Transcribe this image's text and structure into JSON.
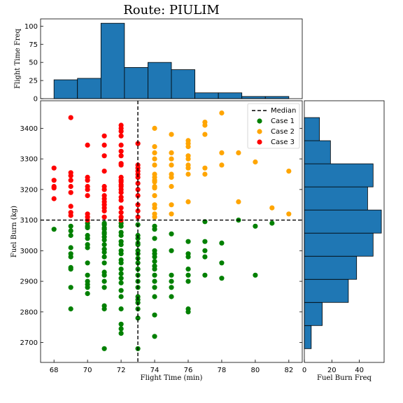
{
  "chart_data": {
    "type": "scatter",
    "title": "Route: PIULIM",
    "xlabel": "Flight Time (min)",
    "ylabel": "Fuel Burn (kg)",
    "xlim": [
      67.2,
      82.8
    ],
    "ylim": [
      2635,
      3490
    ],
    "xticks": [
      68,
      70,
      72,
      74,
      76,
      78,
      80,
      82
    ],
    "yticks": [
      2700,
      2800,
      2900,
      3000,
      3100,
      3200,
      3300,
      3400
    ],
    "median_x": 73,
    "median_y": 3100,
    "legend": {
      "placement": "top-right",
      "median_label": "Median",
      "colors": {
        "median": "#000000"
      }
    },
    "series": [
      {
        "name": "Case 1",
        "color": "#008000",
        "points": [
          [
            68,
            3070
          ],
          [
            69,
            3080
          ],
          [
            69,
            3065
          ],
          [
            69,
            3050
          ],
          [
            69,
            3010
          ],
          [
            69,
            2990
          ],
          [
            69,
            2980
          ],
          [
            69,
            2945
          ],
          [
            69,
            2940
          ],
          [
            69,
            2880
          ],
          [
            69,
            2810
          ],
          [
            70,
            3090
          ],
          [
            70,
            3080
          ],
          [
            70,
            3075
          ],
          [
            70,
            3050
          ],
          [
            70,
            3040
          ],
          [
            70,
            3020
          ],
          [
            70,
            3010
          ],
          [
            70,
            2960
          ],
          [
            70,
            2920
          ],
          [
            70,
            2900
          ],
          [
            70,
            2890
          ],
          [
            70,
            2880
          ],
          [
            70,
            2860
          ],
          [
            71,
            3090
          ],
          [
            71,
            3085
          ],
          [
            71,
            3075
          ],
          [
            71,
            3070
          ],
          [
            71,
            3060
          ],
          [
            71,
            3055
          ],
          [
            71,
            3045
          ],
          [
            71,
            3035
          ],
          [
            71,
            3020
          ],
          [
            71,
            3005
          ],
          [
            71,
            2995
          ],
          [
            71,
            2980
          ],
          [
            71,
            2960
          ],
          [
            71,
            2930
          ],
          [
            71,
            2920
          ],
          [
            71,
            2900
          ],
          [
            71,
            2880
          ],
          [
            71,
            2820
          ],
          [
            71,
            2810
          ],
          [
            71,
            2680
          ],
          [
            72,
            3090
          ],
          [
            72,
            3080
          ],
          [
            72,
            3060
          ],
          [
            72,
            3050
          ],
          [
            72,
            3030
          ],
          [
            72,
            3020
          ],
          [
            72,
            3000
          ],
          [
            72,
            2990
          ],
          [
            72,
            2970
          ],
          [
            72,
            2960
          ],
          [
            72,
            2940
          ],
          [
            72,
            2925
          ],
          [
            72,
            2910
          ],
          [
            72,
            2895
          ],
          [
            72,
            2870
          ],
          [
            72,
            2850
          ],
          [
            72,
            2810
          ],
          [
            72,
            2760
          ],
          [
            72,
            2745
          ],
          [
            72,
            2730
          ],
          [
            73,
            3085
          ],
          [
            73,
            3050
          ],
          [
            73,
            3040
          ],
          [
            73,
            3025
          ],
          [
            73,
            3020
          ],
          [
            73,
            3000
          ],
          [
            73,
            2990
          ],
          [
            73,
            2975
          ],
          [
            73,
            2960
          ],
          [
            73,
            2940
          ],
          [
            73,
            2920
          ],
          [
            73,
            2900
          ],
          [
            73,
            2880
          ],
          [
            73,
            2850
          ],
          [
            73,
            2840
          ],
          [
            73,
            2830
          ],
          [
            73,
            2810
          ],
          [
            73,
            2780
          ],
          [
            73,
            2680
          ],
          [
            74,
            3080
          ],
          [
            74,
            3070
          ],
          [
            74,
            3040
          ],
          [
            74,
            3000
          ],
          [
            74,
            2990
          ],
          [
            74,
            2980
          ],
          [
            74,
            2965
          ],
          [
            74,
            2950
          ],
          [
            74,
            2940
          ],
          [
            74,
            2920
          ],
          [
            74,
            2900
          ],
          [
            74,
            2880
          ],
          [
            74,
            2850
          ],
          [
            74,
            2790
          ],
          [
            74,
            2720
          ],
          [
            75,
            3055
          ],
          [
            75,
            3000
          ],
          [
            75,
            2920
          ],
          [
            75,
            2900
          ],
          [
            75,
            2880
          ],
          [
            75,
            2850
          ],
          [
            76,
            3030
          ],
          [
            76,
            2990
          ],
          [
            76,
            2980
          ],
          [
            76,
            2940
          ],
          [
            76,
            2920
          ],
          [
            76,
            2900
          ],
          [
            76,
            2810
          ],
          [
            76,
            2800
          ],
          [
            77,
            3095
          ],
          [
            77,
            3030
          ],
          [
            77,
            3000
          ],
          [
            77,
            2980
          ],
          [
            77,
            2920
          ],
          [
            78,
            3025
          ],
          [
            78,
            2960
          ],
          [
            78,
            2910
          ],
          [
            79,
            3100
          ],
          [
            80,
            3080
          ],
          [
            80,
            2920
          ],
          [
            81,
            3090
          ]
        ]
      },
      {
        "name": "Case 2",
        "color": "#ffa500",
        "points": [
          [
            74,
            3400
          ],
          [
            74,
            3340
          ],
          [
            74,
            3320
          ],
          [
            74,
            3300
          ],
          [
            74,
            3280
          ],
          [
            74,
            3250
          ],
          [
            74,
            3240
          ],
          [
            74,
            3230
          ],
          [
            74,
            3225
          ],
          [
            74,
            3210
          ],
          [
            74,
            3205
          ],
          [
            74,
            3180
          ],
          [
            74,
            3150
          ],
          [
            74,
            3140
          ],
          [
            74,
            3120
          ],
          [
            74,
            3110
          ],
          [
            75,
            3380
          ],
          [
            75,
            3320
          ],
          [
            75,
            3300
          ],
          [
            75,
            3280
          ],
          [
            75,
            3250
          ],
          [
            75,
            3240
          ],
          [
            75,
            3210
          ],
          [
            75,
            3150
          ],
          [
            75,
            3120
          ],
          [
            76,
            3360
          ],
          [
            76,
            3350
          ],
          [
            76,
            3340
          ],
          [
            76,
            3310
          ],
          [
            76,
            3300
          ],
          [
            76,
            3280
          ],
          [
            76,
            3270
          ],
          [
            76,
            3250
          ],
          [
            76,
            3160
          ],
          [
            77,
            3420
          ],
          [
            77,
            3410
          ],
          [
            77,
            3380
          ],
          [
            77,
            3270
          ],
          [
            77,
            3250
          ],
          [
            78,
            3450
          ],
          [
            78,
            3320
          ],
          [
            78,
            3280
          ],
          [
            79,
            3320
          ],
          [
            79,
            3160
          ],
          [
            80,
            3290
          ],
          [
            81,
            3140
          ],
          [
            82,
            3260
          ],
          [
            82,
            3120
          ]
        ]
      },
      {
        "name": "Case 3",
        "color": "#ff0000",
        "points": [
          [
            68,
            3270
          ],
          [
            68,
            3230
          ],
          [
            68,
            3210
          ],
          [
            68,
            3205
          ],
          [
            68,
            3170
          ],
          [
            69,
            3435
          ],
          [
            69,
            3255
          ],
          [
            69,
            3245
          ],
          [
            69,
            3230
          ],
          [
            69,
            3210
          ],
          [
            69,
            3190
          ],
          [
            69,
            3145
          ],
          [
            69,
            3125
          ],
          [
            69,
            3115
          ],
          [
            70,
            3345
          ],
          [
            70,
            3240
          ],
          [
            70,
            3230
          ],
          [
            70,
            3210
          ],
          [
            70,
            3200
          ],
          [
            70,
            3180
          ],
          [
            70,
            3120
          ],
          [
            70,
            3110
          ],
          [
            70,
            3100
          ],
          [
            71,
            3375
          ],
          [
            71,
            3345
          ],
          [
            71,
            3310
          ],
          [
            71,
            3260
          ],
          [
            71,
            3210
          ],
          [
            71,
            3200
          ],
          [
            71,
            3180
          ],
          [
            71,
            3170
          ],
          [
            71,
            3160
          ],
          [
            71,
            3150
          ],
          [
            71,
            3140
          ],
          [
            71,
            3130
          ],
          [
            71,
            3110
          ],
          [
            72,
            3410
          ],
          [
            72,
            3400
          ],
          [
            72,
            3390
          ],
          [
            72,
            3375
          ],
          [
            72,
            3345
          ],
          [
            72,
            3325
          ],
          [
            72,
            3310
          ],
          [
            72,
            3285
          ],
          [
            72,
            3280
          ],
          [
            72,
            3240
          ],
          [
            72,
            3230
          ],
          [
            72,
            3225
          ],
          [
            72,
            3215
          ],
          [
            72,
            3210
          ],
          [
            72,
            3200
          ],
          [
            72,
            3190
          ],
          [
            72,
            3175
          ],
          [
            72,
            3165
          ],
          [
            72,
            3140
          ],
          [
            72,
            3125
          ],
          [
            72,
            3110
          ],
          [
            72,
            3100
          ],
          [
            73,
            3350
          ],
          [
            73,
            3280
          ],
          [
            73,
            3270
          ],
          [
            73,
            3260
          ],
          [
            73,
            3250
          ],
          [
            73,
            3240
          ],
          [
            73,
            3220
          ],
          [
            73,
            3200
          ],
          [
            73,
            3180
          ],
          [
            73,
            3150
          ],
          [
            73,
            3130
          ],
          [
            73,
            3110
          ]
        ]
      }
    ],
    "top_histogram": {
      "ylabel": "Flight Time Freq",
      "xlim": [
        67.2,
        82.8
      ],
      "ylim": [
        0,
        110
      ],
      "yticks": [
        0,
        25,
        50,
        75,
        100
      ],
      "bin_edges": [
        68,
        69.4,
        70.8,
        72.2,
        73.6,
        75,
        76.4,
        77.8,
        79.2,
        80.6,
        82
      ],
      "counts": [
        26,
        28,
        104,
        43,
        50,
        40,
        8,
        8,
        3,
        3
      ],
      "color": "#1f77b4"
    },
    "right_histogram": {
      "xlabel": "Fuel Burn Freq",
      "xlim": [
        0,
        58
      ],
      "xticks": [
        0,
        20,
        40
      ],
      "bin_edges": [
        2680,
        2755.5,
        2831,
        2906.5,
        2982,
        3057.5,
        3133,
        3208.5,
        3284,
        3359.5,
        3435
      ],
      "counts": [
        5,
        13,
        32,
        38,
        50,
        56,
        46,
        50,
        19,
        11
      ],
      "color": "#1f77b4"
    }
  }
}
